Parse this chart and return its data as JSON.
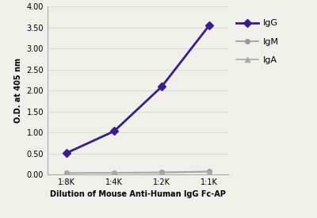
{
  "x_labels": [
    "1:8K",
    "1:4K",
    "1:2K",
    "1:1K"
  ],
  "x_values": [
    1,
    2,
    3,
    4
  ],
  "IgG_values": [
    0.51,
    1.03,
    2.09,
    3.55
  ],
  "IgM_values": [
    0.03,
    0.04,
    0.05,
    0.07
  ],
  "IgA_values": [
    0.03,
    0.04,
    0.04,
    0.06
  ],
  "IgG_color": "#3a1c8c",
  "IgM_color": "#999999",
  "IgA_color": "#aaaaaa",
  "xlabel": "Dilution of Mouse Anti-Human IgG Fc-AP",
  "ylabel": "O.D. at 405 nm",
  "ylim_min": 0.0,
  "ylim_max": 4.0,
  "yticks": [
    0.0,
    0.5,
    1.0,
    1.5,
    2.0,
    2.5,
    3.0,
    3.5,
    4.0
  ],
  "legend_labels": [
    "IgG",
    "IgM",
    "IgA"
  ],
  "bg_color": "#f0f0eb",
  "grid_color": "#d8d8d8",
  "spine_color": "#aaaaaa"
}
